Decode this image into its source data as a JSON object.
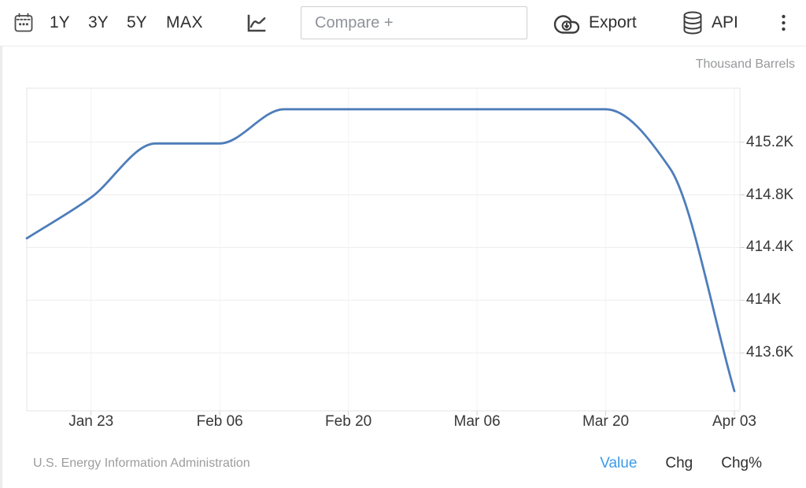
{
  "toolbar": {
    "ranges": [
      {
        "label": "1Y"
      },
      {
        "label": "3Y"
      },
      {
        "label": "5Y"
      },
      {
        "label": "MAX"
      }
    ],
    "compare": {
      "placeholder": "Compare +"
    },
    "export_label": "Export",
    "api_label": "API"
  },
  "chart": {
    "unit_label": "Thousand Barrels"
  },
  "footer": {
    "source": "U.S. Energy Information Administration",
    "links": [
      {
        "label": "Value",
        "active": true
      },
      {
        "label": "Chg",
        "active": false
      },
      {
        "label": "Chg%",
        "active": false
      }
    ]
  },
  "colors": {
    "line": "#4e7dba",
    "active_link": "#3d9be8",
    "grid_h": "#ededed",
    "grid_v": "#f3f3f3",
    "plot_border": "#e4e4e4",
    "tick": "#d2d2d2",
    "text_dark": "#2f2f2f",
    "text_axis": "#383838",
    "text_muted": "#9d9d9d"
  },
  "chart_data": {
    "type": "line",
    "title": "",
    "ylabel": "Thousand Barrels",
    "xlabel": "",
    "grid": true,
    "legend": "none",
    "xlim": [
      0,
      77.6
    ],
    "ylim": [
      413.16,
      415.61
    ],
    "x_ticks": [
      {
        "label": "Jan 23",
        "day": 7
      },
      {
        "label": "Feb 06",
        "day": 21
      },
      {
        "label": "Feb 20",
        "day": 35
      },
      {
        "label": "Mar 06",
        "day": 49
      },
      {
        "label": "Mar 20",
        "day": 63
      },
      {
        "label": "Apr 03",
        "day": 77
      }
    ],
    "y_ticks": [
      {
        "label": "415.2K",
        "value": 415.2
      },
      {
        "label": "414.8K",
        "value": 414.8
      },
      {
        "label": "414.4K",
        "value": 414.4
      },
      {
        "label": "414K",
        "value": 414.0
      },
      {
        "label": "413.6K",
        "value": 413.6
      }
    ],
    "series": [
      {
        "name": "Value",
        "color": "#4e7dba",
        "points": [
          {
            "date": "Jan 16",
            "day": 0,
            "value": 414.47
          },
          {
            "date": "Jan 23",
            "day": 7,
            "value": 414.78
          },
          {
            "date": "Jan 30",
            "day": 14,
            "value": 415.19
          },
          {
            "date": "Feb 06",
            "day": 21,
            "value": 415.19
          },
          {
            "date": "Feb 13",
            "day": 28,
            "value": 415.45
          },
          {
            "date": "Feb 20",
            "day": 35,
            "value": 415.45
          },
          {
            "date": "Feb 27",
            "day": 42,
            "value": 415.45
          },
          {
            "date": "Mar 06",
            "day": 49,
            "value": 415.45
          },
          {
            "date": "Mar 13",
            "day": 56,
            "value": 415.45
          },
          {
            "date": "Mar 20",
            "day": 63,
            "value": 415.45
          },
          {
            "date": "Mar 27",
            "day": 70,
            "value": 415.0
          },
          {
            "date": "Apr 03",
            "day": 77,
            "value": 413.31
          }
        ]
      }
    ]
  }
}
